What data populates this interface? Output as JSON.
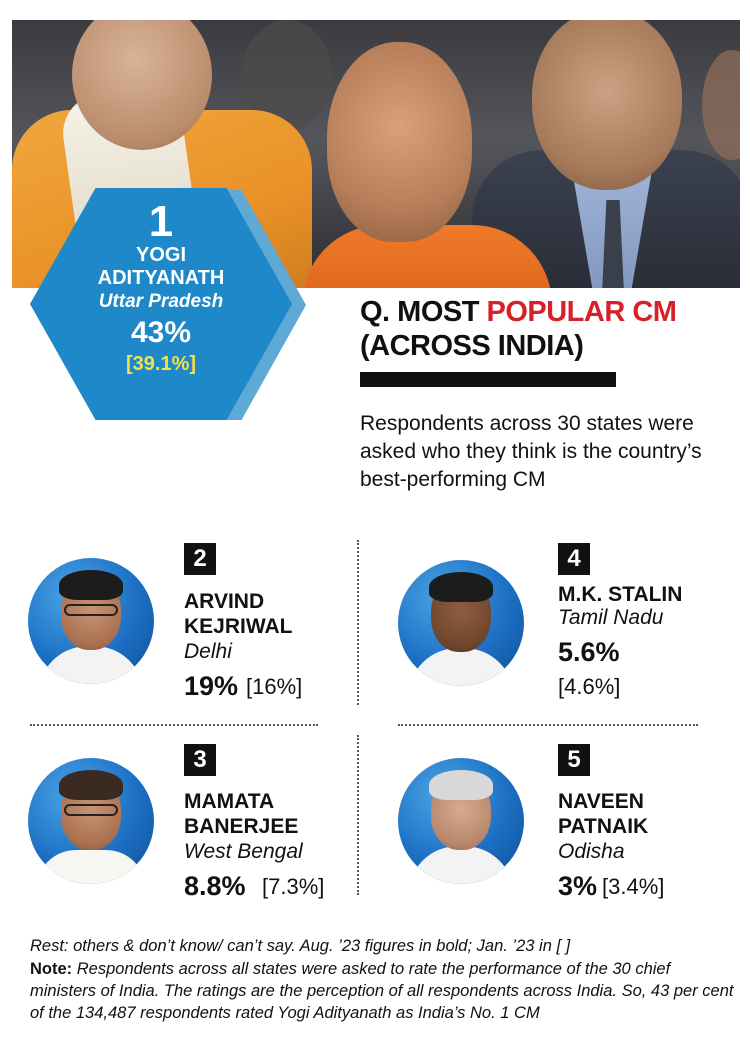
{
  "chart_data": {
    "type": "table",
    "title_prefix": "Q. MOST ",
    "title_highlight": "POPULAR CM",
    "title_suffix": "(ACROSS INDIA)",
    "subtitle": "Respondents across 30 states were asked who they think is the country’s best-performing CM",
    "columns": [
      "rank",
      "name",
      "state",
      "aug_2023",
      "jan_2023"
    ],
    "rows": [
      {
        "rank": "1",
        "name_line1": "YOGI",
        "name_line2": "ADITYANATH",
        "state": "Uttar Pradesh",
        "aug_2023": "43%",
        "jan_2023": "[39.1%]"
      },
      {
        "rank": "2",
        "name_line1": "ARVIND",
        "name_line2": "KEJRIWAL",
        "state": "Delhi",
        "aug_2023": "19%",
        "jan_2023": "[16%]"
      },
      {
        "rank": "3",
        "name_line1": "MAMATA",
        "name_line2": "BANERJEE",
        "state": "West Bengal",
        "aug_2023": "8.8%",
        "jan_2023": "[7.3%]"
      },
      {
        "rank": "4",
        "name_line1": "M.K. STALIN",
        "name_line2": "",
        "state": "Tamil Nadu",
        "aug_2023": "5.6%",
        "jan_2023": "[4.6%]"
      },
      {
        "rank": "5",
        "name_line1": "NAVEEN",
        "name_line2": "PATNAIK",
        "state": "Odisha",
        "aug_2023": "3%",
        "jan_2023": "[3.4%]"
      }
    ]
  },
  "footer": {
    "rest": "Rest: others & don’t know/ can’t say. Aug. ’23 figures in bold; Jan. ’23 in [ ]",
    "note_label": "Note:",
    "note_text": " Respondents across all states were asked to rate the performance of the 30 chief ministers of India. The ratings are the perception of all respondents across India. So, 43 per cent of the 134,487 respondents rated Yogi Adityanath as India’s No. 1 CM"
  },
  "colors": {
    "hexagon": "#1e88c8",
    "highlight_red": "#d8202a",
    "prev_value_yellow": "#f4e04a",
    "portrait_blue": "#1c6fc4"
  }
}
